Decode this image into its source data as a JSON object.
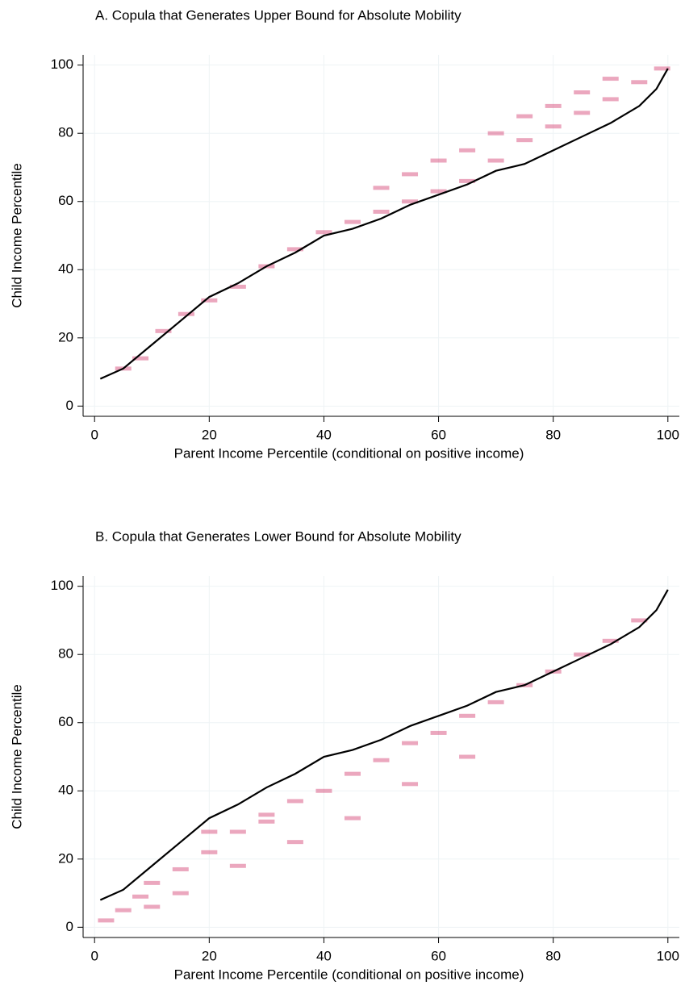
{
  "chart_data": [
    {
      "type": "line",
      "title": "A. Copula that Generates Upper Bound for Absolute Mobility",
      "x_label": "Parent Income Percentile (conditional on positive income)",
      "y_label": "Child Income Percentile",
      "xlim": [
        -2,
        102
      ],
      "ylim": [
        -3,
        103
      ],
      "xticks": [
        0,
        20,
        40,
        60,
        80,
        100
      ],
      "yticks": [
        0,
        20,
        40,
        60,
        80,
        100
      ],
      "grid": true,
      "line": {
        "color": "#000000",
        "x": [
          1,
          5,
          10,
          15,
          20,
          25,
          30,
          35,
          40,
          45,
          50,
          55,
          60,
          65,
          70,
          75,
          80,
          85,
          90,
          95,
          98,
          100
        ],
        "y": [
          8,
          11,
          18,
          25,
          32,
          36,
          41,
          45,
          50,
          52,
          55,
          59,
          62,
          65,
          69,
          71,
          75,
          79,
          83,
          88,
          93,
          99
        ]
      },
      "heat": {
        "color": "#d23c6e",
        "x": [
          5,
          8,
          12,
          16,
          20,
          25,
          30,
          35,
          40,
          45,
          50,
          55,
          60,
          65,
          70,
          75,
          80,
          85,
          90,
          95,
          99,
          55,
          65,
          75,
          85,
          90,
          60,
          70,
          80,
          50
        ],
        "y": [
          11,
          14,
          22,
          27,
          31,
          35,
          41,
          46,
          51,
          54,
          57,
          60,
          63,
          66,
          72,
          78,
          82,
          86,
          90,
          95,
          99,
          68,
          75,
          85,
          92,
          96,
          72,
          80,
          88,
          64
        ]
      }
    },
    {
      "type": "line",
      "title": "B. Copula that Generates Lower Bound for Absolute Mobility",
      "x_label": "Parent Income Percentile (conditional on positive income)",
      "y_label": "Child Income Percentile",
      "xlim": [
        -2,
        102
      ],
      "ylim": [
        -3,
        103
      ],
      "xticks": [
        0,
        20,
        40,
        60,
        80,
        100
      ],
      "yticks": [
        0,
        20,
        40,
        60,
        80,
        100
      ],
      "grid": true,
      "line": {
        "color": "#000000",
        "x": [
          1,
          5,
          10,
          15,
          20,
          25,
          30,
          35,
          40,
          45,
          50,
          55,
          60,
          65,
          70,
          75,
          80,
          85,
          90,
          95,
          98,
          100
        ],
        "y": [
          8,
          11,
          18,
          25,
          32,
          36,
          41,
          45,
          50,
          52,
          55,
          59,
          62,
          65,
          69,
          71,
          75,
          79,
          83,
          88,
          93,
          99
        ]
      },
      "heat": {
        "color": "#d23c6e",
        "x": [
          2,
          5,
          8,
          10,
          15,
          20,
          25,
          30,
          35,
          40,
          45,
          50,
          55,
          60,
          65,
          70,
          75,
          80,
          85,
          90,
          95,
          15,
          25,
          35,
          45,
          55,
          65,
          20,
          30,
          10
        ],
        "y": [
          2,
          5,
          9,
          13,
          17,
          22,
          28,
          31,
          37,
          40,
          45,
          49,
          54,
          57,
          62,
          66,
          71,
          75,
          80,
          84,
          90,
          10,
          18,
          25,
          32,
          42,
          50,
          28,
          33,
          6
        ]
      }
    }
  ]
}
